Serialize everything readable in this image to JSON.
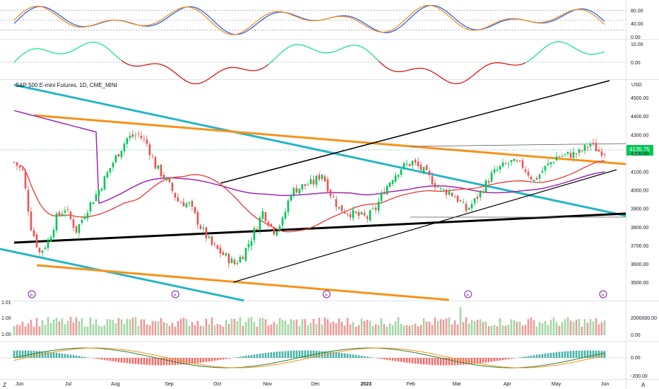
{
  "chart_data": {
    "type": "candlestick",
    "title": "S&P 500 E-mini Futures, 1D, CME_MINI",
    "currency": "USD",
    "last_price": "4135.75",
    "last_change": "-27:?",
    "x_tick_labels": [
      "Jun",
      "Jul",
      "Aug",
      "Sep",
      "Oct",
      "Nov",
      "Dec",
      "2023",
      "Feb",
      "Mar",
      "Apr",
      "May",
      "Jun"
    ],
    "y_ticks": [
      3500,
      3600,
      3700,
      3800,
      3900,
      4000,
      4100,
      4200,
      4300,
      4400,
      4500
    ],
    "y_tick_labels": [
      "3500.00",
      "3600.00",
      "3700.00",
      "3800.00",
      "3900.00",
      "4000.00",
      "4100.00",
      "4200.00",
      "4300.00",
      "4400.00",
      "4500.00"
    ],
    "ylim": [
      3420,
      4550
    ],
    "price_path": [
      [
        0,
        4150
      ],
      [
        3,
        4100
      ],
      [
        6,
        3800
      ],
      [
        9,
        3660
      ],
      [
        12,
        3720
      ],
      [
        15,
        3850
      ],
      [
        18,
        3900
      ],
      [
        22,
        3780
      ],
      [
        26,
        3900
      ],
      [
        30,
        4000
      ],
      [
        35,
        4150
      ],
      [
        40,
        4280
      ],
      [
        44,
        4300
      ],
      [
        47,
        4250
      ],
      [
        50,
        4130
      ],
      [
        54,
        4050
      ],
      [
        58,
        3940
      ],
      [
        62,
        3920
      ],
      [
        66,
        3800
      ],
      [
        70,
        3700
      ],
      [
        74,
        3650
      ],
      [
        78,
        3600
      ],
      [
        81,
        3650
      ],
      [
        84,
        3740
      ],
      [
        88,
        3880
      ],
      [
        92,
        3780
      ],
      [
        95,
        3830
      ],
      [
        98,
        3990
      ],
      [
        102,
        4020
      ],
      [
        106,
        4040
      ],
      [
        109,
        4090
      ],
      [
        112,
        3980
      ],
      [
        115,
        3900
      ],
      [
        118,
        3880
      ],
      [
        122,
        3860
      ],
      [
        125,
        3850
      ],
      [
        128,
        3900
      ],
      [
        131,
        4000
      ],
      [
        134,
        4070
      ],
      [
        137,
        4120
      ],
      [
        141,
        4150
      ],
      [
        145,
        4100
      ],
      [
        148,
        4050
      ],
      [
        151,
        4000
      ],
      [
        154,
        3990
      ],
      [
        157,
        3950
      ],
      [
        160,
        3890
      ],
      [
        163,
        3940
      ],
      [
        166,
        4010
      ],
      [
        169,
        4080
      ],
      [
        172,
        4120
      ],
      [
        176,
        4150
      ],
      [
        180,
        4130
      ],
      [
        184,
        4050
      ],
      [
        188,
        4120
      ],
      [
        192,
        4180
      ],
      [
        196,
        4190
      ],
      [
        200,
        4200
      ],
      [
        204,
        4250
      ],
      [
        207,
        4210
      ]
    ],
    "price_start": 4150,
    "indicator_stoch": {
      "y_tick_labels": [
        "80.00",
        "40.00",
        "0.00"
      ],
      "levels": [
        80,
        50,
        20
      ]
    },
    "indicator_osc": {
      "y_tick_labels": [
        "10.00",
        "0.00"
      ]
    },
    "indicator_volume": {
      "left_labels": [
        "1.01",
        "1.00",
        "1.00"
      ],
      "right_labels": [
        "2000000.00",
        "0.00"
      ]
    },
    "indicator_macd": {
      "right_labels": [
        "0.00",
        "-200.00"
      ]
    },
    "markers": [
      "»",
      "»",
      "»",
      "»",
      "»"
    ],
    "colors": {
      "up": "#26a69a",
      "up_bright": "#00c853",
      "down": "#ef5350",
      "cyan_line": "#26b5c9",
      "orange_line": "#f7931a",
      "purple_ma": "#9c27b0",
      "red_ma": "#e53935",
      "stoch_fast": "#f7931a",
      "stoch_slow": "#2962ff"
    }
  },
  "corner_labels": {
    "bottom_left": "Z",
    "bottom_right": "A"
  }
}
